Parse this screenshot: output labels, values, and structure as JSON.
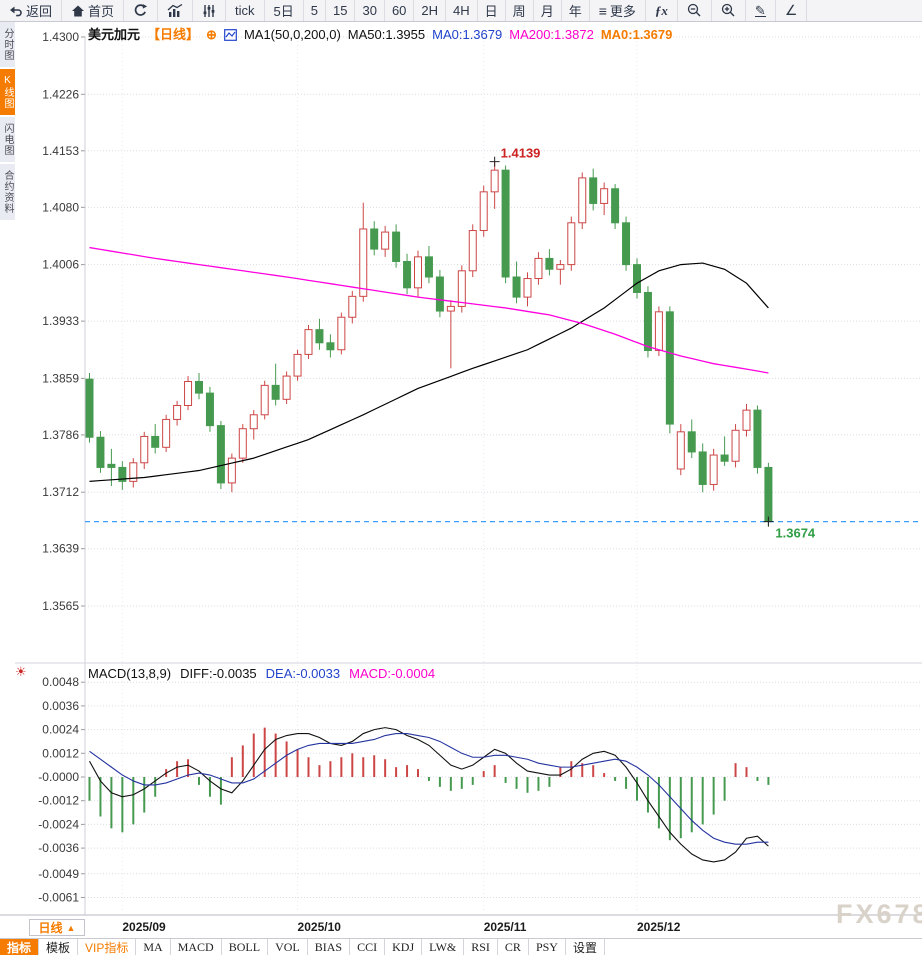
{
  "top_toolbar": {
    "items": [
      {
        "label": "返回",
        "icon": "back-icon"
      },
      {
        "label": "首页",
        "icon": "home-icon"
      },
      {
        "label": "",
        "icon": "refresh-icon"
      },
      {
        "label": "",
        "icon": "column-chart-icon"
      },
      {
        "label": "",
        "icon": "sliders-icon"
      },
      {
        "label": "tick"
      },
      {
        "label": "5日"
      },
      {
        "label": "5"
      },
      {
        "label": "15"
      },
      {
        "label": "30"
      },
      {
        "label": "60"
      },
      {
        "label": "2H"
      },
      {
        "label": "4H"
      },
      {
        "label": "日"
      },
      {
        "label": "周"
      },
      {
        "label": "月"
      },
      {
        "label": "年"
      },
      {
        "label": "更多",
        "icon": "menu-icon"
      },
      {
        "label": "ƒx"
      },
      {
        "label": "",
        "icon": "zoom-out-icon"
      },
      {
        "label": "",
        "icon": "zoom-in-icon"
      },
      {
        "label": "",
        "icon": "pencil-icon"
      },
      {
        "label": "∠",
        "icon": "angle-icon"
      }
    ]
  },
  "sidebar": {
    "items": [
      {
        "label": "分时图",
        "selected": false
      },
      {
        "label": "K线图",
        "selected": true
      },
      {
        "label": "闪电图",
        "selected": false
      },
      {
        "label": "合约资料",
        "selected": false
      }
    ]
  },
  "chart_header": {
    "symbol": "美元加元",
    "period_tag": "【日线】",
    "add_icon": "⊕",
    "ma_settings": "MA1(50,0,200,0)",
    "ma50": "MA50:1.3955",
    "ma0_blue": "MA0:1.3679",
    "ma200": "MA200:1.3872",
    "ma0_orange": "MA0:1.3679"
  },
  "macd_header": {
    "title": "MACD(13,8,9)",
    "diff": "DIFF:-0.0035",
    "dea": "DEA:-0.0033",
    "macd": "MACD:-0.0004"
  },
  "period_selector": {
    "label": "日线",
    "arrow": "▲"
  },
  "bottom_toolbar": {
    "items": [
      "指标",
      "模板",
      "VIP指标",
      "MA",
      "MACD",
      "BOLL",
      "VOL",
      "BIAS",
      "CCI",
      "KDJ",
      "LW&",
      "RSI",
      "CR",
      "PSY",
      "设置"
    ]
  },
  "watermark": "FX678",
  "colors": {
    "accent_orange": "#f57c00",
    "candle_up_red": "#cd4646",
    "candle_down_green": "#469a50",
    "ma50_black": "#000000",
    "ma200_magenta": "#ff00e0",
    "dea_blue": "#2634a0",
    "diff_black": "#111111",
    "price_line_blue": "#3aa0ff",
    "high_label_red": "#cc2222",
    "last_label_green": "#2f9e44"
  },
  "chart_data": {
    "type": "candlestick",
    "title": "美元加元 日线 (USD/CAD daily with MA50/MA200 and MACD)",
    "y_axis": {
      "max": 1.43,
      "min": 1.3565,
      "labels": [
        "1.4300",
        "1.4226",
        "1.4153",
        "1.4080",
        "1.4006",
        "1.3933",
        "1.3859",
        "1.3786",
        "1.3712",
        "1.3639",
        "1.3565"
      ]
    },
    "x_axis": {
      "labels": [
        {
          "text": "2025/09",
          "index": 3
        },
        {
          "text": "2025/10",
          "index": 19
        },
        {
          "text": "2025/11",
          "index": 36
        },
        {
          "text": "2025/12",
          "index": 50
        }
      ]
    },
    "annotations": {
      "high_label": "1.4139",
      "high_value": 1.4139,
      "high_index": 37,
      "last_label": "1.3674",
      "last_value": 1.3674
    },
    "current_price": 1.3674,
    "candles": [
      [
        1.3858,
        1.3866,
        1.3776,
        1.3783
      ],
      [
        1.3783,
        1.3791,
        1.3737,
        1.3744
      ],
      [
        1.3748,
        1.3768,
        1.372,
        1.3744
      ],
      [
        1.3744,
        1.3752,
        1.3715,
        1.3726
      ],
      [
        1.3726,
        1.3756,
        1.3718,
        1.375
      ],
      [
        1.375,
        1.379,
        1.3742,
        1.3784
      ],
      [
        1.3784,
        1.38,
        1.3762,
        1.377
      ],
      [
        1.377,
        1.3812,
        1.3764,
        1.3806
      ],
      [
        1.3806,
        1.383,
        1.3798,
        1.3824
      ],
      [
        1.3824,
        1.3862,
        1.3818,
        1.3855
      ],
      [
        1.3855,
        1.3866,
        1.3832,
        1.384
      ],
      [
        1.384,
        1.3848,
        1.379,
        1.3798
      ],
      [
        1.3798,
        1.3804,
        1.3716,
        1.3724
      ],
      [
        1.3724,
        1.3762,
        1.3712,
        1.3756
      ],
      [
        1.3756,
        1.38,
        1.375,
        1.3794
      ],
      [
        1.3794,
        1.3818,
        1.378,
        1.3812
      ],
      [
        1.3812,
        1.3856,
        1.3806,
        1.385
      ],
      [
        1.385,
        1.3878,
        1.3824,
        1.3832
      ],
      [
        1.3832,
        1.3868,
        1.3826,
        1.3862
      ],
      [
        1.3862,
        1.3896,
        1.3856,
        1.389
      ],
      [
        1.389,
        1.3928,
        1.3884,
        1.3922
      ],
      [
        1.3922,
        1.3936,
        1.3896,
        1.3905
      ],
      [
        1.3905,
        1.3916,
        1.3886,
        1.3896
      ],
      [
        1.3896,
        1.3944,
        1.389,
        1.3938
      ],
      [
        1.3938,
        1.3972,
        1.393,
        1.3965
      ],
      [
        1.3965,
        1.4086,
        1.3958,
        1.4052
      ],
      [
        1.4052,
        1.4062,
        1.4018,
        1.4026
      ],
      [
        1.4026,
        1.4056,
        1.4016,
        1.4048
      ],
      [
        1.4048,
        1.4058,
        1.4002,
        1.401
      ],
      [
        1.401,
        1.402,
        1.3968,
        1.3976
      ],
      [
        1.3976,
        1.4024,
        1.3964,
        1.4016
      ],
      [
        1.4016,
        1.403,
        1.3982,
        1.399
      ],
      [
        1.399,
        1.3999,
        1.3938,
        1.3946
      ],
      [
        1.3946,
        1.396,
        1.3872,
        1.3952
      ],
      [
        1.3952,
        1.4005,
        1.3944,
        1.3998
      ],
      [
        1.3998,
        1.4058,
        1.399,
        1.405
      ],
      [
        1.405,
        1.4108,
        1.4042,
        1.41
      ],
      [
        1.41,
        1.4139,
        1.4078,
        1.4128
      ],
      [
        1.4128,
        1.4134,
        1.3982,
        1.399
      ],
      [
        1.399,
        1.401,
        1.3956,
        1.3964
      ],
      [
        1.3964,
        1.3996,
        1.3952,
        1.3988
      ],
      [
        1.3988,
        1.4022,
        1.398,
        1.4014
      ],
      [
        1.4014,
        1.4026,
        1.3992,
        1.4
      ],
      [
        1.4,
        1.4012,
        1.398,
        1.4006
      ],
      [
        1.4006,
        1.4068,
        1.3998,
        1.406
      ],
      [
        1.406,
        1.4125,
        1.4052,
        1.4118
      ],
      [
        1.4118,
        1.413,
        1.4076,
        1.4085
      ],
      [
        1.4085,
        1.4112,
        1.407,
        1.4104
      ],
      [
        1.4104,
        1.411,
        1.4052,
        1.406
      ],
      [
        1.406,
        1.4068,
        1.3998,
        1.4006
      ],
      [
        1.4006,
        1.4014,
        1.3962,
        1.397
      ],
      [
        1.397,
        1.3978,
        1.3886,
        1.3895
      ],
      [
        1.3895,
        1.3952,
        1.3888,
        1.3945
      ],
      [
        1.3945,
        1.3952,
        1.3788,
        1.38
      ],
      [
        1.3742,
        1.38,
        1.3734,
        1.379
      ],
      [
        1.379,
        1.3806,
        1.3756,
        1.3764
      ],
      [
        1.3764,
        1.3775,
        1.3712,
        1.3722
      ],
      [
        1.3722,
        1.3768,
        1.3714,
        1.376
      ],
      [
        1.376,
        1.3784,
        1.3746,
        1.3752
      ],
      [
        1.3752,
        1.38,
        1.3744,
        1.3792
      ],
      [
        1.3792,
        1.3826,
        1.3784,
        1.3818
      ],
      [
        1.3818,
        1.3824,
        1.3736,
        1.3744
      ],
      [
        1.3744,
        1.375,
        1.3668,
        1.3674
      ]
    ],
    "ma50_points": [
      [
        0,
        1.3726
      ],
      [
        5,
        1.3731
      ],
      [
        10,
        1.374
      ],
      [
        15,
        1.3756
      ],
      [
        20,
        1.378
      ],
      [
        25,
        1.3812
      ],
      [
        30,
        1.3846
      ],
      [
        35,
        1.3872
      ],
      [
        40,
        1.3896
      ],
      [
        44,
        1.3924
      ],
      [
        47,
        1.395
      ],
      [
        50,
        1.3982
      ],
      [
        52,
        1.3998
      ],
      [
        54,
        1.4006
      ],
      [
        56,
        1.4008
      ],
      [
        58,
        1.4
      ],
      [
        60,
        1.3982
      ],
      [
        62,
        1.395
      ]
    ],
    "ma200_points": [
      [
        0,
        1.4028
      ],
      [
        6,
        1.4014
      ],
      [
        12,
        1.4002
      ],
      [
        18,
        1.399
      ],
      [
        24,
        1.3977
      ],
      [
        30,
        1.3964
      ],
      [
        34,
        1.3957
      ],
      [
        38,
        1.395
      ],
      [
        42,
        1.3941
      ],
      [
        45,
        1.393
      ],
      [
        48,
        1.3916
      ],
      [
        51,
        1.39
      ],
      [
        54,
        1.3888
      ],
      [
        57,
        1.3878
      ],
      [
        60,
        1.3871
      ],
      [
        62,
        1.3866
      ]
    ],
    "macd": {
      "scale": 0.0001,
      "y_labels": [
        "0.0048",
        "0.0036",
        "0.0024",
        "0.0012",
        "-0.0000",
        "-0.0012",
        "-0.0024",
        "-0.0036",
        "-0.0049",
        "-0.0061"
      ],
      "hist": [
        -12,
        -20,
        -26,
        -28,
        -24,
        -18,
        -10,
        4,
        8,
        9,
        -4,
        -10,
        -14,
        10,
        16,
        22,
        25,
        22,
        18,
        14,
        10,
        6,
        8,
        10,
        12,
        10,
        11,
        9,
        5,
        6,
        4,
        -2,
        -5,
        -7,
        -6,
        -4,
        3,
        6,
        -3,
        -6,
        -8,
        -7,
        -5,
        5,
        8,
        7,
        6,
        2,
        -2,
        -6,
        -12,
        -18,
        -26,
        -32,
        -31,
        -28,
        -24,
        -19,
        -12,
        7,
        5,
        -2,
        -4
      ],
      "diff": [
        8,
        -2,
        -8,
        -10,
        -9,
        -6,
        -2,
        2,
        5,
        6,
        3,
        -2,
        -6,
        -8,
        -2,
        6,
        14,
        19,
        21,
        22,
        22,
        20,
        17,
        16,
        18,
        22,
        24,
        25,
        24,
        21,
        19,
        16,
        11,
        6,
        4,
        6,
        10,
        14,
        12,
        7,
        3,
        2,
        1,
        1,
        4,
        9,
        12,
        13,
        11,
        5,
        -3,
        -12,
        -20,
        -28,
        -34,
        -39,
        -42,
        -43,
        -42,
        -38,
        -31,
        -30,
        -35
      ],
      "dea": [
        13,
        9,
        5,
        1,
        -2,
        -4,
        -4,
        -3,
        -1,
        1,
        2,
        1,
        -1,
        -3,
        -3,
        -1,
        3,
        7,
        11,
        14,
        16,
        17,
        17,
        17,
        17,
        18,
        19,
        21,
        22,
        22,
        21,
        20,
        18,
        15,
        12,
        10,
        10,
        11,
        11,
        10,
        9,
        7,
        6,
        5,
        5,
        6,
        7,
        8,
        9,
        8,
        5,
        1,
        -4,
        -10,
        -16,
        -22,
        -27,
        -31,
        -33,
        -34,
        -34,
        -33,
        -33
      ]
    }
  }
}
